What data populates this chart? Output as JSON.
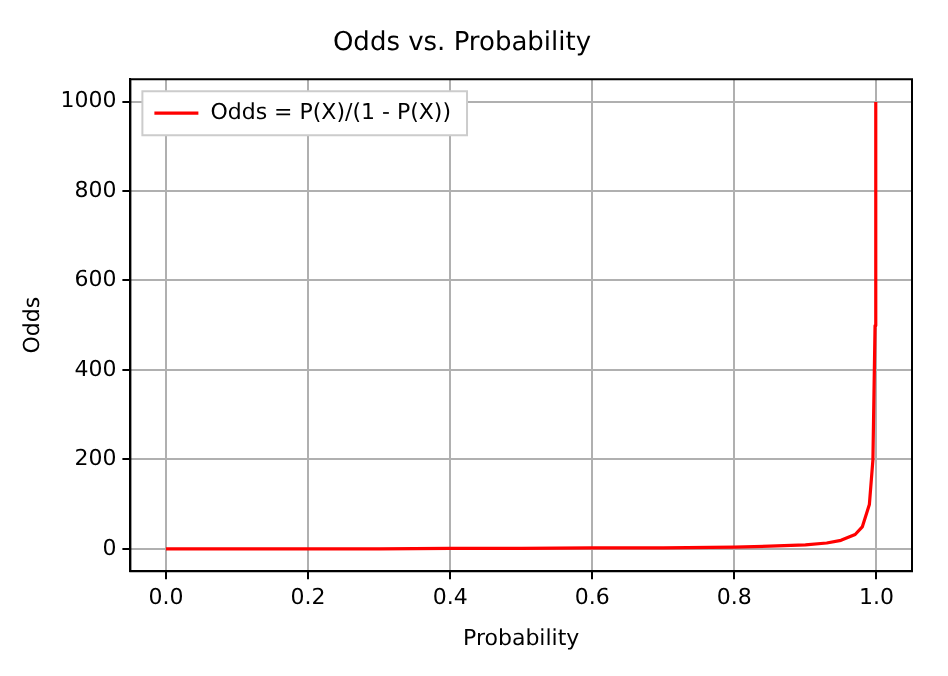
{
  "chart_data": {
    "type": "line",
    "title": "Odds vs. Probability",
    "xlabel": "Probability",
    "ylabel": "Odds",
    "x": [
      0,
      0.1,
      0.2,
      0.3,
      0.4,
      0.5,
      0.6,
      0.7,
      0.8,
      0.85,
      0.9,
      0.93,
      0.95,
      0.97,
      0.98,
      0.99,
      0.995,
      0.998,
      0.999
    ],
    "series": [
      {
        "name": "Odds = P(X)/(1 - P(X))",
        "color": "#ff0000",
        "values": [
          0,
          0,
          0,
          0,
          1,
          1,
          2,
          2,
          4,
          6,
          9,
          13,
          19,
          32,
          49,
          99,
          199,
          499,
          999
        ]
      }
    ],
    "xlim": [
      -0.05,
      1.05
    ],
    "ylim": [
      -50,
      1050
    ],
    "xticks": [
      {
        "value": 0,
        "label": "0.0"
      },
      {
        "value": 0.2,
        "label": "0.2"
      },
      {
        "value": 0.4,
        "label": "0.4"
      },
      {
        "value": 0.6,
        "label": "0.6"
      },
      {
        "value": 0.8,
        "label": "0.8"
      },
      {
        "value": 1,
        "label": "1.0"
      }
    ],
    "yticks": [
      0,
      200,
      400,
      600,
      800,
      1000
    ],
    "grid": true,
    "legend": "top left",
    "marker": "none",
    "line_style": "solid"
  }
}
